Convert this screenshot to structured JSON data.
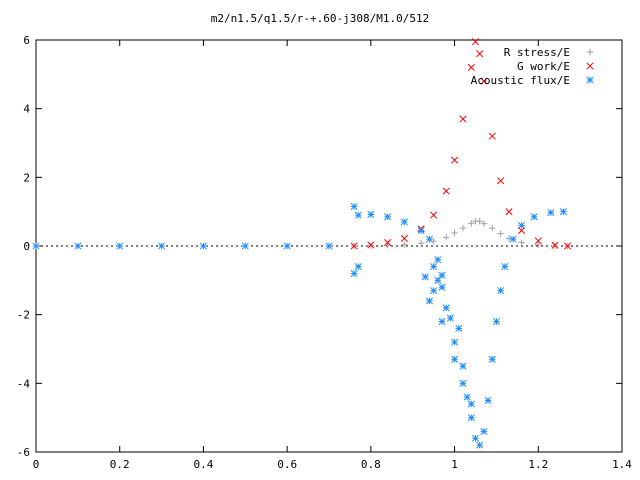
{
  "chart_data": {
    "type": "scatter",
    "title": "m2/n1.5/q1.5/r-+.60-j308/M1.0/512",
    "xlabel": "",
    "ylabel": "",
    "xlim": [
      0,
      1.4
    ],
    "ylim": [
      -6,
      6
    ],
    "grid": false,
    "legend_position": "top-right",
    "x_ticks": [
      "0",
      "0.2",
      "0.4",
      "0.6",
      "0.8",
      "1",
      "1.2",
      "1.4"
    ],
    "y_ticks": [
      "-6",
      "-4",
      "-2",
      "0",
      "2",
      "4",
      "6"
    ],
    "series": [
      {
        "name": "R stress/E",
        "marker": "+",
        "color": "#a0a0a0",
        "points": [
          [
            0.76,
            0.0
          ],
          [
            0.8,
            0.01
          ],
          [
            0.84,
            0.02
          ],
          [
            0.88,
            0.04
          ],
          [
            0.92,
            0.08
          ],
          [
            0.95,
            0.14
          ],
          [
            0.98,
            0.25
          ],
          [
            1.0,
            0.38
          ],
          [
            1.02,
            0.52
          ],
          [
            1.04,
            0.66
          ],
          [
            1.05,
            0.72
          ],
          [
            1.06,
            0.72
          ],
          [
            1.07,
            0.65
          ],
          [
            1.09,
            0.52
          ],
          [
            1.11,
            0.36
          ],
          [
            1.13,
            0.22
          ],
          [
            1.16,
            0.1
          ],
          [
            1.2,
            0.03
          ],
          [
            1.24,
            0.0
          ],
          [
            1.27,
            0.0
          ]
        ]
      },
      {
        "name": "G work/E",
        "marker": "x",
        "color": "#ff0000",
        "points": [
          [
            0.76,
            0.0
          ],
          [
            0.8,
            0.03
          ],
          [
            0.84,
            0.1
          ],
          [
            0.88,
            0.22
          ],
          [
            0.92,
            0.5
          ],
          [
            0.95,
            0.9
          ],
          [
            0.98,
            1.6
          ],
          [
            1.0,
            2.5
          ],
          [
            1.02,
            3.7
          ],
          [
            1.04,
            5.2
          ],
          [
            1.05,
            5.95
          ],
          [
            1.06,
            5.6
          ],
          [
            1.07,
            4.8
          ],
          [
            1.09,
            3.2
          ],
          [
            1.11,
            1.9
          ],
          [
            1.13,
            1.0
          ],
          [
            1.16,
            0.45
          ],
          [
            1.2,
            0.15
          ],
          [
            1.24,
            0.02
          ],
          [
            1.27,
            0.0
          ]
        ]
      },
      {
        "name": "Acoustic flux/E",
        "marker": "*",
        "color": "#1e8cff",
        "points": [
          [
            0.0,
            0.0
          ],
          [
            0.1,
            0.0
          ],
          [
            0.2,
            0.0
          ],
          [
            0.3,
            0.0
          ],
          [
            0.4,
            0.0
          ],
          [
            0.5,
            0.0
          ],
          [
            0.6,
            0.0
          ],
          [
            0.7,
            0.0
          ],
          [
            0.76,
            1.15
          ],
          [
            0.76,
            -0.8
          ],
          [
            0.77,
            0.9
          ],
          [
            0.8,
            0.92
          ],
          [
            0.84,
            0.85
          ],
          [
            0.88,
            0.7
          ],
          [
            0.92,
            0.45
          ],
          [
            0.94,
            0.2
          ],
          [
            0.96,
            -0.4
          ],
          [
            0.97,
            -1.2
          ],
          [
            0.98,
            -1.8
          ],
          [
            1.0,
            -2.8
          ],
          [
            1.02,
            -4.0
          ],
          [
            1.04,
            -5.0
          ],
          [
            1.05,
            -5.6
          ],
          [
            1.06,
            -5.8
          ],
          [
            1.07,
            -5.4
          ],
          [
            1.08,
            -4.5
          ],
          [
            1.09,
            -3.3
          ],
          [
            1.1,
            -2.2
          ],
          [
            1.11,
            -1.3
          ],
          [
            1.12,
            -0.6
          ],
          [
            1.14,
            0.2
          ],
          [
            1.16,
            0.6
          ],
          [
            1.19,
            0.85
          ],
          [
            1.23,
            0.97
          ],
          [
            1.26,
            1.0
          ],
          [
            0.77,
            -0.6
          ],
          [
            0.95,
            -0.6
          ],
          [
            0.97,
            -2.2
          ],
          [
            0.99,
            -2.1
          ],
          [
            1.0,
            -3.3
          ],
          [
            1.01,
            -2.4
          ],
          [
            1.02,
            -3.5
          ],
          [
            1.03,
            -4.4
          ],
          [
            1.04,
            -4.6
          ],
          [
            0.97,
            -0.85
          ],
          [
            0.96,
            -1.0
          ],
          [
            0.95,
            -1.3
          ],
          [
            0.94,
            -1.6
          ],
          [
            0.93,
            -0.9
          ]
        ]
      }
    ]
  }
}
